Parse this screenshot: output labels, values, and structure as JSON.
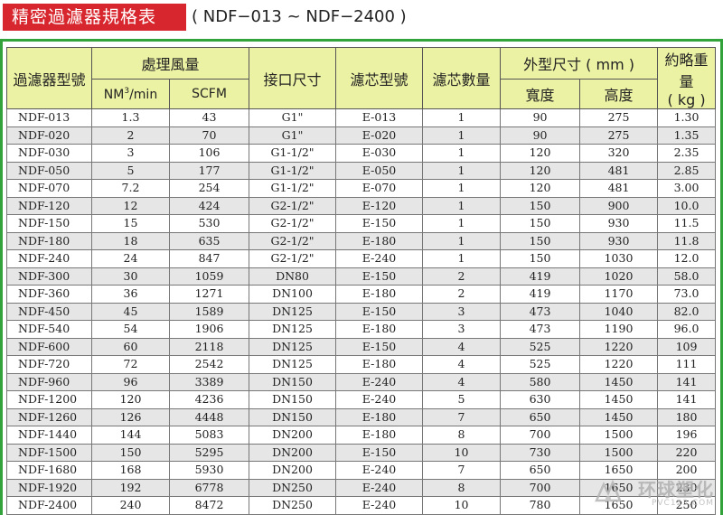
{
  "header": {
    "title": "精密過濾器規格表",
    "subtitle": "( NDF−013 ~ NDF−2400 )"
  },
  "table": {
    "headers": {
      "model": "過濾器型號",
      "flow": "處理風量",
      "flow_nm_prefix": "NM",
      "flow_nm_sup": "3",
      "flow_nm_suffix": "/min",
      "flow_scfm": "SCFM",
      "port": "接口尺寸",
      "element": "濾芯型號",
      "element_qty": "濾芯數量",
      "dimensions": "外型尺寸 ( mm )",
      "width": "寬度",
      "height": "高度",
      "weight_line1": "約略重量",
      "weight_line2": "( kg )"
    },
    "rows": [
      [
        "NDF-013",
        "1.3",
        "43",
        "G1\"",
        "E-013",
        "1",
        "90",
        "275",
        "1.30"
      ],
      [
        "NDF-020",
        "2",
        "70",
        "G1\"",
        "E-020",
        "1",
        "90",
        "275",
        "1.35"
      ],
      [
        "NDF-030",
        "3",
        "106",
        "G1-1/2\"",
        "E-030",
        "1",
        "120",
        "320",
        "2.35"
      ],
      [
        "NDF-050",
        "5",
        "177",
        "G1-1/2\"",
        "E-050",
        "1",
        "120",
        "481",
        "2.85"
      ],
      [
        "NDF-070",
        "7.2",
        "254",
        "G1-1/2\"",
        "E-070",
        "1",
        "120",
        "481",
        "3.00"
      ],
      [
        "NDF-120",
        "12",
        "424",
        "G2-1/2\"",
        "E-120",
        "1",
        "150",
        "900",
        "10.0"
      ],
      [
        "NDF-150",
        "15",
        "530",
        "G2-1/2\"",
        "E-150",
        "1",
        "150",
        "930",
        "11.5"
      ],
      [
        "NDF-180",
        "18",
        "635",
        "G2-1/2\"",
        "E-180",
        "1",
        "150",
        "930",
        "11.8"
      ],
      [
        "NDF-240",
        "24",
        "847",
        "G2-1/2\"",
        "E-240",
        "1",
        "150",
        "1030",
        "12.0"
      ],
      [
        "NDF-300",
        "30",
        "1059",
        "DN80",
        "E-150",
        "2",
        "419",
        "1020",
        "58.0"
      ],
      [
        "NDF-360",
        "36",
        "1271",
        "DN100",
        "E-180",
        "2",
        "419",
        "1170",
        "73.0"
      ],
      [
        "NDF-450",
        "45",
        "1589",
        "DN125",
        "E-150",
        "3",
        "473",
        "1040",
        "82.0"
      ],
      [
        "NDF-540",
        "54",
        "1906",
        "DN125",
        "E-180",
        "3",
        "473",
        "1190",
        "96.0"
      ],
      [
        "NDF-600",
        "60",
        "2118",
        "DN125",
        "E-150",
        "4",
        "525",
        "1220",
        "109"
      ],
      [
        "NDF-720",
        "72",
        "2542",
        "DN125",
        "E-180",
        "4",
        "525",
        "1220",
        "111"
      ],
      [
        "NDF-960",
        "96",
        "3389",
        "DN150",
        "E-240",
        "4",
        "580",
        "1450",
        "141"
      ],
      [
        "NDF-1200",
        "120",
        "4236",
        "DN150",
        "E-240",
        "5",
        "630",
        "1450",
        "141"
      ],
      [
        "NDF-1260",
        "126",
        "4448",
        "DN150",
        "E-180",
        "7",
        "650",
        "1450",
        "180"
      ],
      [
        "NDF-1440",
        "144",
        "5083",
        "DN200",
        "E-180",
        "8",
        "700",
        "1500",
        "196"
      ],
      [
        "NDF-1500",
        "150",
        "5295",
        "DN200",
        "E-150",
        "10",
        "730",
        "1500",
        "220"
      ],
      [
        "NDF-1680",
        "168",
        "5930",
        "DN200",
        "E-240",
        "7",
        "650",
        "1650",
        "200"
      ],
      [
        "NDF-1920",
        "192",
        "6778",
        "DN250",
        "E-240",
        "8",
        "700",
        "1650",
        "230"
      ],
      [
        "NDF-2400",
        "240",
        "8472",
        "DN250",
        "E-240",
        "10",
        "780",
        "1650",
        "250"
      ]
    ]
  },
  "watermark": {
    "brand": "环球塑化",
    "url": "PVC123.COM"
  },
  "colors": {
    "title_bg": "#d7262d",
    "frame_border": "#31a33a",
    "header_bg": "#ecf2a3",
    "stripe_bg": "#e6e6e6"
  }
}
